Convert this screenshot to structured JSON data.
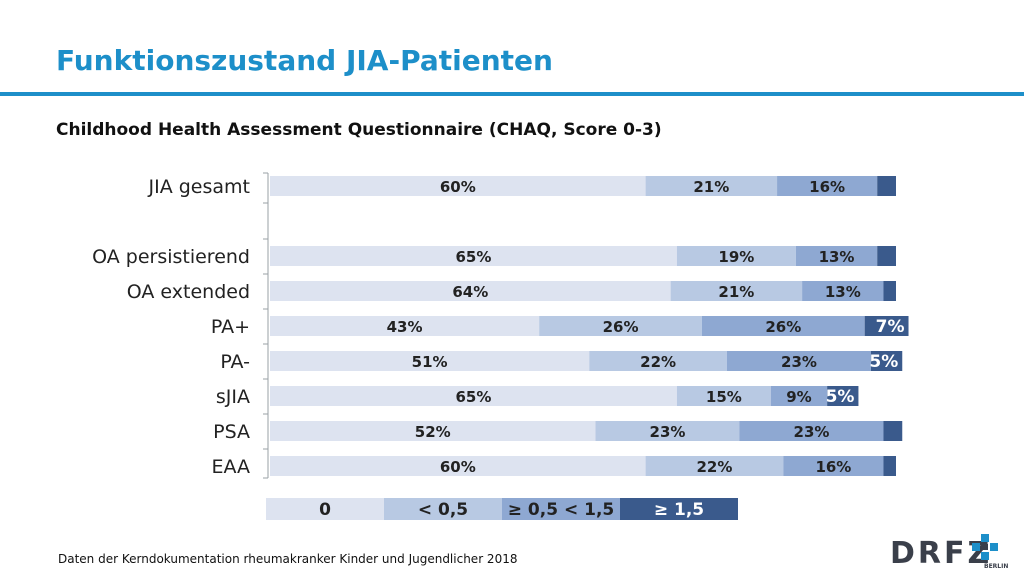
{
  "title": "Funktionszustand JIA-Patienten",
  "subtitle": "Childhood Health Assessment Questionnaire (CHAQ, Score 0-3)",
  "footnote": "Daten der Kerndokumentation rheumakranker Kinder und Jugendlicher 2018",
  "logo": {
    "text": "DRFZ",
    "sub": "BERLIN"
  },
  "colors": {
    "accent": "#1d8fc9",
    "c0": "#dde3f0",
    "c1": "#b8c9e3",
    "c2": "#8ea8d2",
    "c3": "#3a5a8c"
  },
  "chart_data": {
    "type": "bar",
    "orientation": "horizontal",
    "stacked": true,
    "percent": true,
    "categories": [
      "JIA gesamt",
      "OA persistierend",
      "OA extended",
      "PA+",
      "PA-",
      "sJIA",
      "PSA",
      "EAA"
    ],
    "series": [
      {
        "name": "0",
        "values": [
          60,
          65,
          64,
          43,
          51,
          65,
          52,
          60
        ]
      },
      {
        "name": "< 0,5",
        "values": [
          21,
          19,
          21,
          26,
          22,
          15,
          23,
          22
        ]
      },
      {
        "name": "≥ 0,5 < 1,5",
        "values": [
          16,
          13,
          13,
          26,
          23,
          9,
          23,
          16
        ]
      },
      {
        "name": "≥ 1,5",
        "values": [
          3,
          3,
          2,
          7,
          5,
          5,
          3,
          2
        ]
      }
    ],
    "labels": [
      [
        "60%",
        "21%",
        "16%",
        ""
      ],
      [
        "65%",
        "19%",
        "13%",
        ""
      ],
      [
        "64%",
        "21%",
        "13%",
        ""
      ],
      [
        "43%",
        "26%",
        "26%",
        "7%"
      ],
      [
        "51%",
        "22%",
        "23%",
        "5%"
      ],
      [
        "65%",
        "15%",
        "9%",
        "5%"
      ],
      [
        "52%",
        "23%",
        "23%",
        ""
      ],
      [
        "60%",
        "22%",
        "16%",
        ""
      ]
    ],
    "xlim": [
      0,
      100
    ],
    "legend": {
      "position": "bottom"
    }
  }
}
